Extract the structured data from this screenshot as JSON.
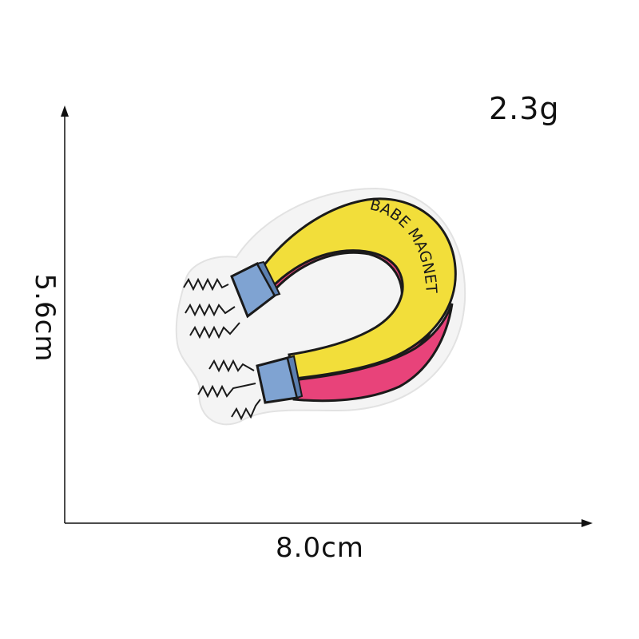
{
  "labels": {
    "weight": "2.3g",
    "width": "8.0cm",
    "height": "5.6cm"
  },
  "patch": {
    "text": "BABE MAGNET",
    "colors": {
      "yellow": "#f2de3a",
      "pink": "#e8437a",
      "tip_blue": "#7fa3d2",
      "felt": "#f4f4f4",
      "outline": "#1a1a1a"
    }
  }
}
